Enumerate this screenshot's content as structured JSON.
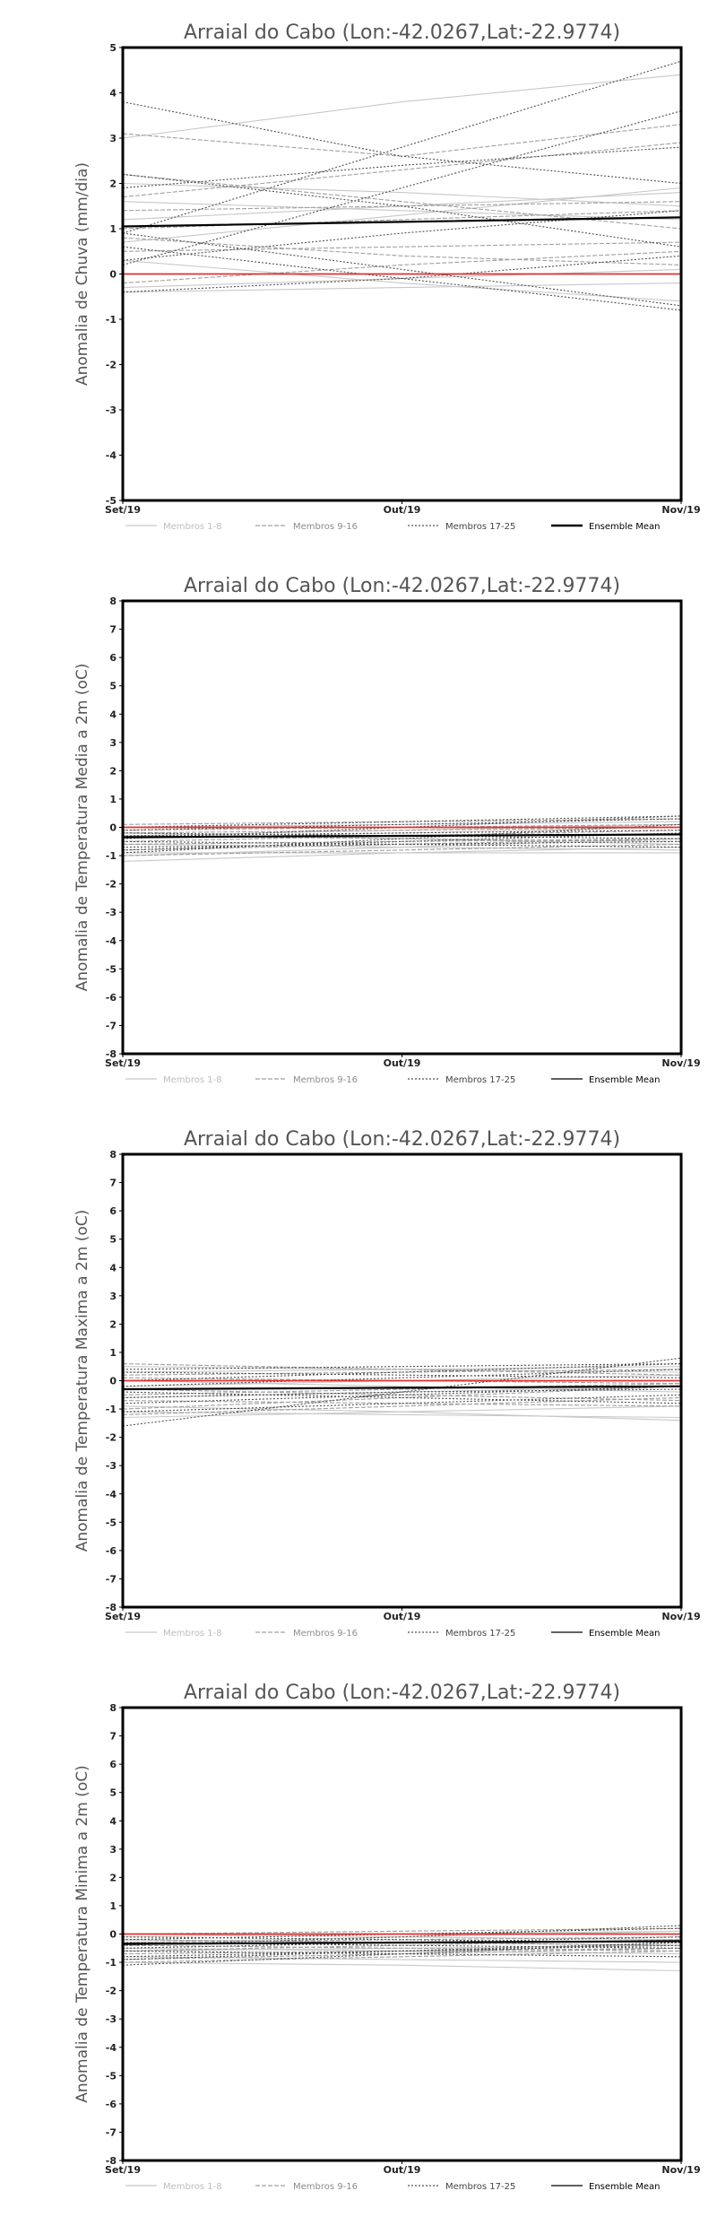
{
  "chart_data": [
    {
      "type": "line",
      "title": "Arraial do Cabo (Lon:-42.0267,Lat:-22.9774)",
      "ylabel": "Anomalia de Chuva (mm/dia)",
      "categories": [
        "Set/19",
        "Out/19",
        "Nov/19"
      ],
      "ylim": [
        -5,
        5
      ],
      "yticks": [
        -5,
        -4,
        -3,
        -2,
        -1,
        0,
        1,
        2,
        3,
        4,
        5
      ],
      "legend": [
        "Membros 1-8",
        "Membros 9-16",
        "Membros 17-25",
        "Ensemble Mean"
      ],
      "series": [
        {
          "name": "Membros 1-8",
          "values": [
            3.0,
            3.8,
            4.4
          ]
        },
        {
          "name": "Membros 1-8",
          "values": [
            1.6,
            1.4,
            1.2
          ]
        },
        {
          "name": "Membros 1-8",
          "values": [
            0.7,
            1.3,
            1.9
          ]
        },
        {
          "name": "Membros 1-8",
          "values": [
            -0.3,
            -0.1,
            0.1
          ]
        },
        {
          "name": "Membros 1-8",
          "values": [
            2.0,
            1.8,
            1.5
          ]
        },
        {
          "name": "Membros 1-8",
          "values": [
            0.3,
            -0.2,
            -0.6
          ]
        },
        {
          "name": "Membros 1-8",
          "values": [
            1.2,
            1.5,
            1.8
          ]
        },
        {
          "name": "Membros 1-8",
          "values": [
            -0.4,
            -0.3,
            -0.2
          ]
        },
        {
          "name": "Membros 9-16",
          "values": [
            3.1,
            2.6,
            3.3
          ]
        },
        {
          "name": "Membros 9-16",
          "values": [
            1.4,
            1.5,
            1.6
          ]
        },
        {
          "name": "Membros 9-16",
          "values": [
            0.8,
            0.4,
            0.2
          ]
        },
        {
          "name": "Membros 9-16",
          "values": [
            1.7,
            2.3,
            2.9
          ]
        },
        {
          "name": "Membros 9-16",
          "values": [
            0.5,
            0.6,
            0.7
          ]
        },
        {
          "name": "Membros 9-16",
          "values": [
            1.0,
            1.2,
            1.4
          ]
        },
        {
          "name": "Membros 9-16",
          "values": [
            -0.2,
            0.2,
            0.5
          ]
        },
        {
          "name": "Membros 9-16",
          "values": [
            2.2,
            1.6,
            1.0
          ]
        },
        {
          "name": "Membros 17-25",
          "values": [
            0.9,
            2.8,
            4.7
          ]
        },
        {
          "name": "Membros 17-25",
          "values": [
            3.8,
            2.6,
            2.0
          ]
        },
        {
          "name": "Membros 17-25",
          "values": [
            0.2,
            1.9,
            3.6
          ]
        },
        {
          "name": "Membros 17-25",
          "values": [
            2.2,
            1.5,
            0.6
          ]
        },
        {
          "name": "Membros 17-25",
          "values": [
            1.9,
            2.4,
            2.8
          ]
        },
        {
          "name": "Membros 17-25",
          "values": [
            0.9,
            0.1,
            -0.7
          ]
        },
        {
          "name": "Membros 17-25",
          "values": [
            -0.4,
            -0.1,
            0.4
          ]
        },
        {
          "name": "Membros 17-25",
          "values": [
            0.3,
            0.9,
            1.4
          ]
        },
        {
          "name": "Membros 17-25",
          "values": [
            0.6,
            -0.1,
            -0.8
          ]
        },
        {
          "name": "Ensemble Mean",
          "values": [
            1.05,
            1.15,
            1.25
          ]
        },
        {
          "name": "",
          "values": [
            0.0,
            0.0,
            0.0
          ]
        }
      ]
    },
    {
      "type": "line",
      "title": "Arraial do Cabo (Lon:-42.0267,Lat:-22.9774)",
      "ylabel": "Anomalia de Temperatura Media a 2m (oC)",
      "categories": [
        "Set/19",
        "Out/19",
        "Nov/19"
      ],
      "ylim": [
        -8,
        8
      ],
      "yticks": [
        -8,
        -7,
        -6,
        -5,
        -4,
        -3,
        -2,
        -1,
        0,
        1,
        2,
        3,
        4,
        5,
        6,
        7,
        8
      ],
      "legend": [
        "Membros 1-8",
        "Membros 9-16",
        "Membros 17-25",
        "Ensemble Mean"
      ],
      "series": [
        {
          "name": "Membros 1-8",
          "values": [
            -1.2,
            -0.9,
            -0.7
          ]
        },
        {
          "name": "Membros 1-8",
          "values": [
            -0.9,
            -0.9,
            -0.9
          ]
        },
        {
          "name": "Membros 1-8",
          "values": [
            -0.4,
            -0.2,
            0.0
          ]
        },
        {
          "name": "Membros 1-8",
          "values": [
            -0.6,
            -0.7,
            -0.8
          ]
        },
        {
          "name": "Membros 1-8",
          "values": [
            0.0,
            0.1,
            0.2
          ]
        },
        {
          "name": "Membros 1-8",
          "values": [
            -0.2,
            -0.4,
            -0.6
          ]
        },
        {
          "name": "Membros 1-8",
          "values": [
            -1.0,
            -0.7,
            -0.4
          ]
        },
        {
          "name": "Membros 1-8",
          "values": [
            -0.3,
            -0.1,
            0.1
          ]
        },
        {
          "name": "Membros 9-16",
          "values": [
            -0.5,
            -0.3,
            -0.1
          ]
        },
        {
          "name": "Membros 9-16",
          "values": [
            -0.8,
            -0.6,
            -0.4
          ]
        },
        {
          "name": "Membros 9-16",
          "values": [
            0.1,
            0.2,
            0.3
          ]
        },
        {
          "name": "Membros 9-16",
          "values": [
            -0.3,
            -0.4,
            -0.5
          ]
        },
        {
          "name": "Membros 9-16",
          "values": [
            -1.0,
            -0.8,
            -0.6
          ]
        },
        {
          "name": "Membros 9-16",
          "values": [
            -0.1,
            0.0,
            0.1
          ]
        },
        {
          "name": "Membros 9-16",
          "values": [
            -0.6,
            -0.5,
            -0.4
          ]
        },
        {
          "name": "Membros 9-16",
          "values": [
            -0.2,
            -0.1,
            0.0
          ]
        },
        {
          "name": "Membros 17-25",
          "values": [
            -0.4,
            0.0,
            0.4
          ]
        },
        {
          "name": "Membros 17-25",
          "values": [
            -0.7,
            -0.6,
            -0.5
          ]
        },
        {
          "name": "Membros 17-25",
          "values": [
            -0.2,
            -0.3,
            -0.4
          ]
        },
        {
          "name": "Membros 17-25",
          "values": [
            -0.9,
            -0.4,
            0.1
          ]
        },
        {
          "name": "Membros 17-25",
          "values": [
            0.0,
            0.2,
            0.4
          ]
        },
        {
          "name": "Membros 17-25",
          "values": [
            -0.5,
            -0.6,
            -0.7
          ]
        },
        {
          "name": "Membros 17-25",
          "values": [
            -0.3,
            -0.2,
            -0.1
          ]
        },
        {
          "name": "Membros 17-25",
          "values": [
            -0.8,
            -0.5,
            -0.2
          ]
        },
        {
          "name": "Membros 17-25",
          "values": [
            -0.1,
            0.1,
            0.3
          ]
        },
        {
          "name": "Ensemble Mean",
          "values": [
            -0.35,
            -0.3,
            -0.25
          ]
        },
        {
          "name": "",
          "values": [
            0.0,
            0.0,
            0.0
          ]
        }
      ]
    },
    {
      "type": "line",
      "title": "Arraial do Cabo (Lon:-42.0267,Lat:-22.9774)",
      "ylabel": "Anomalia de Temperatura Maxima a 2m (oC)",
      "categories": [
        "Set/19",
        "Out/19",
        "Nov/19"
      ],
      "ylim": [
        -8,
        8
      ],
      "yticks": [
        -8,
        -7,
        -6,
        -5,
        -4,
        -3,
        -2,
        -1,
        0,
        1,
        2,
        3,
        4,
        5,
        6,
        7,
        8
      ],
      "legend": [
        "Membros 1-8",
        "Membros 9-16",
        "Membros 17-25",
        "Ensemble Mean"
      ],
      "series": [
        {
          "name": "Membros 1-8",
          "values": [
            -1.3,
            -1.1,
            -0.9
          ]
        },
        {
          "name": "Membros 1-8",
          "values": [
            0.3,
            0.4,
            0.5
          ]
        },
        {
          "name": "Membros 1-8",
          "values": [
            -0.9,
            -1.1,
            -1.4
          ]
        },
        {
          "name": "Membros 1-8",
          "values": [
            0.0,
            -0.2,
            -0.4
          ]
        },
        {
          "name": "Membros 1-8",
          "values": [
            -0.6,
            -0.4,
            -0.2
          ]
        },
        {
          "name": "Membros 1-8",
          "values": [
            0.5,
            0.4,
            0.3
          ]
        },
        {
          "name": "Membros 1-8",
          "values": [
            -1.1,
            -1.2,
            -1.3
          ]
        },
        {
          "name": "Membros 1-8",
          "values": [
            -0.2,
            0.0,
            0.2
          ]
        },
        {
          "name": "Membros 9-16",
          "values": [
            -0.7,
            -0.8,
            -0.9
          ]
        },
        {
          "name": "Membros 9-16",
          "values": [
            0.2,
            0.3,
            0.4
          ]
        },
        {
          "name": "Membros 9-16",
          "values": [
            -1.0,
            -0.6,
            -0.2
          ]
        },
        {
          "name": "Membros 9-16",
          "values": [
            -0.3,
            -0.5,
            -0.7
          ]
        },
        {
          "name": "Membros 9-16",
          "values": [
            0.6,
            0.4,
            0.2
          ]
        },
        {
          "name": "Membros 9-16",
          "values": [
            -0.5,
            -0.3,
            -0.1
          ]
        },
        {
          "name": "Membros 9-16",
          "values": [
            -1.2,
            -0.9,
            -0.6
          ]
        },
        {
          "name": "Membros 9-16",
          "values": [
            0.1,
            0.0,
            -0.1
          ]
        },
        {
          "name": "Membros 17-25",
          "values": [
            -1.6,
            -0.4,
            0.8
          ]
        },
        {
          "name": "Membros 17-25",
          "values": [
            -0.4,
            -0.6,
            -0.8
          ]
        },
        {
          "name": "Membros 17-25",
          "values": [
            0.0,
            0.3,
            0.6
          ]
        },
        {
          "name": "Membros 17-25",
          "values": [
            -0.8,
            -0.5,
            -0.2
          ]
        },
        {
          "name": "Membros 17-25",
          "values": [
            0.3,
            0.2,
            0.1
          ]
        },
        {
          "name": "Membros 17-25",
          "values": [
            -1.1,
            -0.8,
            -0.5
          ]
        },
        {
          "name": "Membros 17-25",
          "values": [
            -0.2,
            0.1,
            0.4
          ]
        },
        {
          "name": "Membros 17-25",
          "values": [
            -0.6,
            -0.4,
            -0.3
          ]
        },
        {
          "name": "Membros 17-25",
          "values": [
            0.4,
            0.5,
            0.6
          ]
        },
        {
          "name": "Ensemble Mean",
          "values": [
            -0.3,
            -0.25,
            -0.2
          ]
        },
        {
          "name": "",
          "values": [
            0.0,
            0.0,
            0.0
          ]
        }
      ]
    },
    {
      "type": "line",
      "title": "Arraial do Cabo (Lon:-42.0267,Lat:-22.9774)",
      "ylabel": "Anomalia de Temperatura Minima a 2m (oC)",
      "categories": [
        "Set/19",
        "Out/19",
        "Nov/19"
      ],
      "ylim": [
        -8,
        8
      ],
      "yticks": [
        -8,
        -7,
        -6,
        -5,
        -4,
        -3,
        -2,
        -1,
        0,
        1,
        2,
        3,
        4,
        5,
        6,
        7,
        8
      ],
      "legend": [
        "Membros 1-8",
        "Membros 9-16",
        "Membros 17-25",
        "Ensemble Mean"
      ],
      "series": [
        {
          "name": "Membros 1-8",
          "values": [
            -1.0,
            -1.1,
            -1.3
          ]
        },
        {
          "name": "Membros 1-8",
          "values": [
            -0.6,
            -0.5,
            -0.4
          ]
        },
        {
          "name": "Membros 1-8",
          "values": [
            -0.2,
            -0.3,
            -0.4
          ]
        },
        {
          "name": "Membros 1-8",
          "values": [
            0.0,
            -0.1,
            -0.2
          ]
        },
        {
          "name": "Membros 1-8",
          "values": [
            -0.8,
            -0.9,
            -1.0
          ]
        },
        {
          "name": "Membros 1-8",
          "values": [
            -0.3,
            -0.1,
            0.1
          ]
        },
        {
          "name": "Membros 1-8",
          "values": [
            -0.5,
            -0.6,
            -0.7
          ]
        },
        {
          "name": "Membros 1-8",
          "values": [
            -0.1,
            0.0,
            0.1
          ]
        },
        {
          "name": "Membros 9-16",
          "values": [
            -0.7,
            -0.6,
            -0.5
          ]
        },
        {
          "name": "Membros 9-16",
          "values": [
            -0.4,
            -0.5,
            -0.6
          ]
        },
        {
          "name": "Membros 9-16",
          "values": [
            0.0,
            0.1,
            0.2
          ]
        },
        {
          "name": "Membros 9-16",
          "values": [
            -0.9,
            -0.7,
            -0.5
          ]
        },
        {
          "name": "Membros 9-16",
          "values": [
            -0.2,
            -0.3,
            -0.4
          ]
        },
        {
          "name": "Membros 9-16",
          "values": [
            -0.6,
            -0.4,
            -0.2
          ]
        },
        {
          "name": "Membros 9-16",
          "values": [
            -0.3,
            -0.2,
            -0.1
          ]
        },
        {
          "name": "Membros 9-16",
          "values": [
            -1.0,
            -0.8,
            -0.6
          ]
        },
        {
          "name": "Membros 17-25",
          "values": [
            -1.1,
            -0.7,
            -0.3
          ]
        },
        {
          "name": "Membros 17-25",
          "values": [
            -0.4,
            -0.1,
            0.3
          ]
        },
        {
          "name": "Membros 17-25",
          "values": [
            -0.8,
            -0.6,
            -0.4
          ]
        },
        {
          "name": "Membros 17-25",
          "values": [
            -0.2,
            0.0,
            0.2
          ]
        },
        {
          "name": "Membros 17-25",
          "values": [
            -0.6,
            -0.7,
            -0.8
          ]
        },
        {
          "name": "Membros 17-25",
          "values": [
            -0.1,
            -0.2,
            -0.3
          ]
        },
        {
          "name": "Membros 17-25",
          "values": [
            -0.5,
            -0.3,
            -0.1
          ]
        },
        {
          "name": "Membros 17-25",
          "values": [
            -0.9,
            -0.6,
            -0.3
          ]
        },
        {
          "name": "Membros 17-25",
          "values": [
            -0.3,
            -0.4,
            -0.5
          ]
        },
        {
          "name": "Ensemble Mean",
          "values": [
            -0.35,
            -0.3,
            -0.25
          ]
        },
        {
          "name": "",
          "values": [
            0.0,
            0.0,
            0.0
          ]
        }
      ]
    }
  ],
  "colors": {
    "membros_1_8": "#c8c8c8",
    "membros_9_16": "#a0a0a0",
    "membros_17_25": "#505050",
    "ensemble_mean": "#000000",
    "zero_line": "#e03030",
    "frame": "#000000",
    "text": "#555555"
  }
}
